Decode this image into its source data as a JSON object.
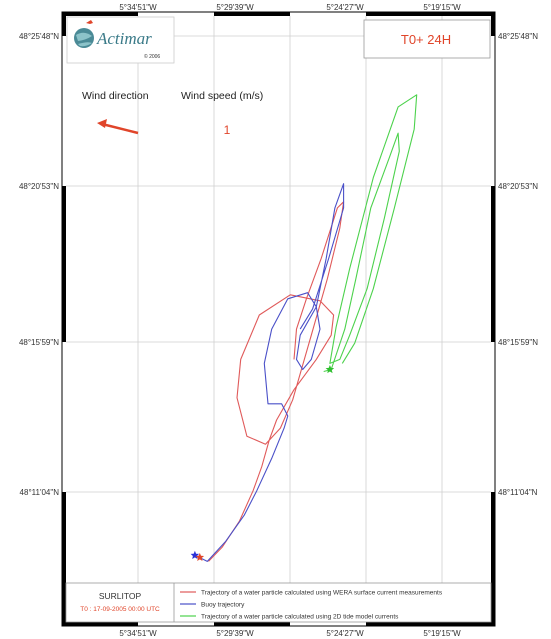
{
  "map": {
    "time_label": "T0+ 24H",
    "logo": {
      "name": "Actimar",
      "year": "© 2006"
    },
    "wind": {
      "direction_label": "Wind direction",
      "speed_label": "Wind speed (m/s)",
      "speed_value": "1",
      "arrow_color": "#e0452a"
    },
    "axes": {
      "longitude_ticks": [
        "5°34'51\"W",
        "5°29'39\"W",
        "5°24'27\"W",
        "5°19'15\"W"
      ],
      "latitude_ticks": [
        "48°25'48\"N",
        "48°20'53\"N",
        "48°15'59\"N",
        "48°11'04\"N"
      ]
    },
    "legend_panel": {
      "title": "SURLITOP",
      "subtitle": "T0 : 17-09-2005 00:00 UTC"
    },
    "legend": [
      {
        "label": "Trajectory of a water particle calculated using WERA surface current measurements",
        "color": "#e05a5a"
      },
      {
        "label": "Buoy trajectory",
        "color": "#4a50c8"
      },
      {
        "label": "Trajectory of a water particle calculated using 2D tide model currents",
        "color": "#4cd24c"
      }
    ]
  },
  "chart_data": {
    "type": "line",
    "x_axis": "longitude",
    "y_axis": "latitude",
    "xlim": [
      -5.626,
      -5.283
    ],
    "ylim": [
      48.14,
      48.44
    ],
    "grid": true,
    "series": [
      {
        "name": "Trajectory of a water particle calculated using WERA surface current measurements",
        "color": "#e05a5a",
        "points": [
          [
            -5.511,
            48.17
          ],
          [
            -5.5,
            48.177
          ],
          [
            -5.486,
            48.19
          ],
          [
            -5.475,
            48.205
          ],
          [
            -5.468,
            48.217
          ],
          [
            -5.462,
            48.23
          ],
          [
            -5.456,
            48.24
          ],
          [
            -5.442,
            48.255
          ],
          [
            -5.424,
            48.27
          ],
          [
            -5.412,
            48.282
          ],
          [
            -5.41,
            48.292
          ],
          [
            -5.421,
            48.299
          ],
          [
            -5.445,
            48.302
          ],
          [
            -5.47,
            48.292
          ],
          [
            -5.485,
            48.27
          ],
          [
            -5.488,
            48.251
          ],
          [
            -5.48,
            48.232
          ],
          [
            -5.465,
            48.228
          ],
          [
            -5.453,
            48.236
          ],
          [
            -5.443,
            48.25
          ],
          [
            -5.428,
            48.282
          ],
          [
            -5.415,
            48.31
          ],
          [
            -5.405,
            48.335
          ],
          [
            -5.402,
            48.348
          ],
          [
            -5.407,
            48.345
          ],
          [
            -5.42,
            48.32
          ],
          [
            -5.432,
            48.3
          ],
          [
            -5.44,
            48.285
          ],
          [
            -5.442,
            48.27
          ]
        ]
      },
      {
        "name": "Buoy trajectory",
        "color": "#4a50c8",
        "points": [
          [
            -5.522,
            48.173
          ],
          [
            -5.512,
            48.17
          ],
          [
            -5.497,
            48.18
          ],
          [
            -5.482,
            48.193
          ],
          [
            -5.472,
            48.205
          ],
          [
            -5.46,
            48.221
          ],
          [
            -5.45,
            48.236
          ],
          [
            -5.447,
            48.242
          ],
          [
            -5.452,
            48.248
          ],
          [
            -5.463,
            48.248
          ],
          [
            -5.466,
            48.268
          ],
          [
            -5.46,
            48.285
          ],
          [
            -5.447,
            48.3
          ],
          [
            -5.431,
            48.303
          ],
          [
            -5.424,
            48.296
          ],
          [
            -5.421,
            48.285
          ],
          [
            -5.428,
            48.27
          ],
          [
            -5.435,
            48.265
          ],
          [
            -5.44,
            48.27
          ],
          [
            -5.437,
            48.282
          ],
          [
            -5.424,
            48.296
          ],
          [
            -5.416,
            48.32
          ],
          [
            -5.409,
            48.345
          ],
          [
            -5.402,
            48.357
          ],
          [
            -5.402,
            48.345
          ],
          [
            -5.414,
            48.32
          ],
          [
            -5.427,
            48.295
          ],
          [
            -5.437,
            48.285
          ]
        ]
      },
      {
        "name": "Trajectory of a water particle calculated using 2D tide model currents",
        "color": "#4cd24c",
        "points": [
          [
            -5.418,
            48.264
          ],
          [
            -5.412,
            48.265
          ],
          [
            -5.401,
            48.285
          ],
          [
            -5.392,
            48.31
          ],
          [
            -5.38,
            48.345
          ],
          [
            -5.365,
            48.37
          ],
          [
            -5.358,
            48.382
          ],
          [
            -5.357,
            48.373
          ],
          [
            -5.369,
            48.34
          ],
          [
            -5.383,
            48.305
          ],
          [
            -5.397,
            48.282
          ],
          [
            -5.405,
            48.27
          ],
          [
            -5.413,
            48.268
          ],
          [
            -5.408,
            48.286
          ],
          [
            -5.397,
            48.315
          ],
          [
            -5.378,
            48.36
          ],
          [
            -5.358,
            48.395
          ],
          [
            -5.343,
            48.401
          ],
          [
            -5.345,
            48.384
          ],
          [
            -5.361,
            48.345
          ],
          [
            -5.378,
            48.305
          ],
          [
            -5.393,
            48.278
          ],
          [
            -5.403,
            48.268
          ]
        ]
      }
    ],
    "markers": [
      {
        "series": "Buoy trajectory",
        "symbol": "star",
        "color": "#2a32d8",
        "point": [
          -5.522,
          48.173
        ]
      },
      {
        "series": "Trajectory of a water particle calculated using WERA surface current measurements",
        "symbol": "star",
        "color": "#e0452a",
        "point": [
          -5.518,
          48.172
        ]
      },
      {
        "series": "Trajectory of a water particle calculated using 2D tide model currents",
        "symbol": "star",
        "color": "#2fbf2f",
        "point": [
          -5.413,
          48.265
        ]
      }
    ]
  }
}
